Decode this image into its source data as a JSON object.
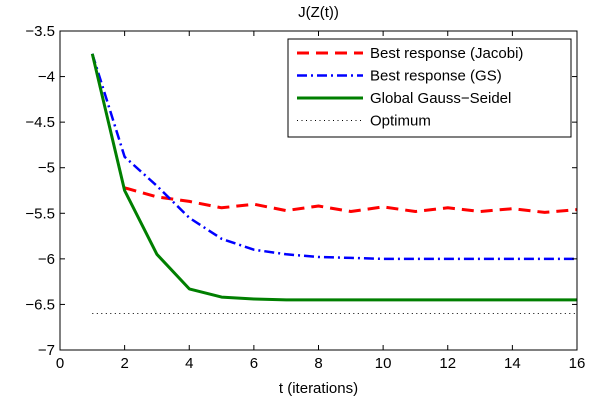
{
  "chart_data": {
    "type": "line",
    "title": "J(Z(t))",
    "xlabel": "t (iterations)",
    "ylabel": "",
    "xlim": [
      0,
      16
    ],
    "ylim": [
      -7,
      -3.5
    ],
    "xticks": [
      "0",
      "2",
      "4",
      "6",
      "8",
      "10",
      "12",
      "14",
      "16"
    ],
    "yticks": [
      "-3.5",
      "-4",
      "-4.5",
      "-5",
      "-5.5",
      "-6",
      "-6.5",
      "-7"
    ],
    "grid": false,
    "legend_position": "top-right",
    "series": [
      {
        "name": "Best response (Jacobi)",
        "color": "#ff0000",
        "style": "dashed",
        "x": [
          2,
          3,
          4,
          5,
          6,
          7,
          8,
          9,
          10,
          11,
          12,
          13,
          14,
          15,
          16
        ],
        "y": [
          -5.22,
          -5.32,
          -5.37,
          -5.44,
          -5.4,
          -5.47,
          -5.42,
          -5.48,
          -5.43,
          -5.48,
          -5.44,
          -5.48,
          -5.45,
          -5.49,
          -5.46
        ]
      },
      {
        "name": "Best response (GS)",
        "color": "#0000ff",
        "style": "dashdot",
        "x": [
          1,
          2,
          3,
          4,
          5,
          6,
          7,
          8,
          9,
          10,
          11,
          12,
          13,
          14,
          15,
          16
        ],
        "y": [
          -3.75,
          -4.88,
          -5.2,
          -5.55,
          -5.78,
          -5.9,
          -5.95,
          -5.98,
          -5.99,
          -6.0,
          -6.0,
          -6.0,
          -6.0,
          -6.0,
          -6.0,
          -6.0
        ]
      },
      {
        "name": "Global Gauss−Seidel",
        "color": "#007f00",
        "style": "solid",
        "x": [
          1,
          2,
          3,
          4,
          5,
          6,
          7,
          8,
          9,
          10,
          11,
          12,
          13,
          14,
          15,
          16
        ],
        "y": [
          -3.75,
          -5.25,
          -5.95,
          -6.33,
          -6.42,
          -6.44,
          -6.45,
          -6.45,
          -6.45,
          -6.45,
          -6.45,
          -6.45,
          -6.45,
          -6.45,
          -6.45,
          -6.45
        ]
      },
      {
        "name": "Optimum",
        "color": "#000000",
        "style": "dotted",
        "x": [
          1,
          16
        ],
        "y": [
          -6.6,
          -6.6
        ]
      }
    ]
  }
}
